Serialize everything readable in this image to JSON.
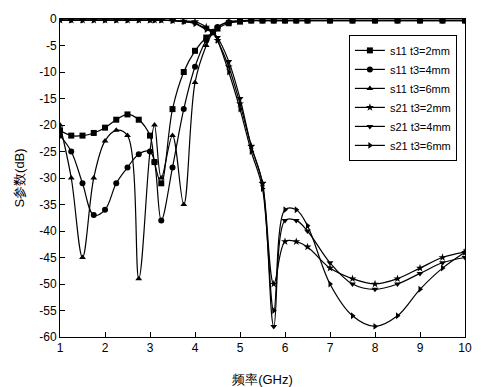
{
  "chart_data": {
    "type": "line",
    "x_label": "频率(GHz)",
    "y_label": "S参数(dB)",
    "x": [
      1,
      1.25,
      1.5,
      1.75,
      2,
      2.25,
      2.5,
      2.75,
      3,
      3.1,
      3.25,
      3.5,
      3.75,
      4,
      4.25,
      4.4,
      4.5,
      4.75,
      5,
      5.25,
      5.5,
      5.75,
      6,
      6.25,
      6.5,
      7,
      7.5,
      8,
      8.5,
      9,
      9.5,
      10
    ],
    "series": [
      {
        "name": "s11 t3=2mm",
        "color": "#000000",
        "marker": "square",
        "values": [
          -21,
          -22,
          -22,
          -21.5,
          -20.5,
          -19,
          -18,
          -19,
          -22,
          -27,
          -31,
          -17,
          -10,
          -6,
          -3.5,
          -2.5,
          -1.8,
          -0.8,
          -0.5,
          -0.3,
          -0.3,
          -0.3,
          -0.3,
          -0.3,
          -0.3,
          -0.3,
          -0.3,
          -0.3,
          -0.3,
          -0.3,
          -0.3,
          -0.3
        ]
      },
      {
        "name": "s11 t3=4mm",
        "color": "#000000",
        "marker": "circle",
        "values": [
          -22,
          -25,
          -31,
          -37,
          -36,
          -31,
          -28,
          -25.5,
          -25,
          -27,
          -38,
          -28,
          -17,
          -9,
          -4,
          -2.5,
          -1.5,
          -0.6,
          -0.4,
          -0.3,
          -0.3,
          -0.3,
          -0.3,
          -0.3,
          -0.3,
          -0.3,
          -0.3,
          -0.3,
          -0.3,
          -0.3,
          -0.3,
          -0.3
        ]
      },
      {
        "name": "s11 t3=6mm",
        "color": "#000000",
        "marker": "triangle-up",
        "values": [
          -20,
          -30,
          -45,
          -30,
          -23,
          -21,
          -22,
          -49,
          -25,
          -20,
          -30,
          -22,
          -35,
          -12,
          -5,
          -2.5,
          -1.5,
          -0.5,
          -0.3,
          -0.2,
          -0.2,
          -0.2,
          -0.2,
          -0.2,
          -0.2,
          -0.2,
          -0.2,
          -0.2,
          -0.2,
          -0.2,
          -0.2,
          -0.2
        ]
      },
      {
        "name": "s21 t3=2mm",
        "color": "#000000",
        "marker": "star",
        "values": [
          -0.2,
          -0.2,
          -0.2,
          -0.2,
          -0.2,
          -0.2,
          -0.2,
          -0.2,
          -0.2,
          -0.2,
          -0.2,
          -0.3,
          -0.4,
          -0.5,
          -1.5,
          -2.5,
          -4,
          -9,
          -16,
          -24,
          -31,
          -50,
          -42,
          -42,
          -43,
          -47,
          -49,
          -50,
          -49,
          -47,
          -45,
          -44
        ]
      },
      {
        "name": "s21 t3=4mm",
        "color": "#000000",
        "marker": "triangle-down",
        "values": [
          -0.2,
          -0.2,
          -0.2,
          -0.2,
          -0.2,
          -0.2,
          -0.2,
          -0.2,
          -0.2,
          -0.2,
          -0.2,
          -0.3,
          -0.5,
          -0.8,
          -1.8,
          -2.5,
          -3.5,
          -8,
          -15,
          -24,
          -31,
          -58,
          -38,
          -38,
          -40,
          -46,
          -50,
          -51,
          -50,
          -48,
          -46,
          -45
        ]
      },
      {
        "name": "s21 t3=6mm",
        "color": "#000000",
        "marker": "triangle-right",
        "values": [
          -0.2,
          -0.2,
          -0.2,
          -0.2,
          -0.2,
          -0.2,
          -0.2,
          -0.2,
          -0.2,
          -0.2,
          -0.2,
          -0.3,
          -0.5,
          -0.9,
          -2,
          -2.5,
          -4,
          -10,
          -17,
          -25,
          -32,
          -55,
          -36,
          -36,
          -39,
          -50,
          -56,
          -58,
          -56,
          -51,
          -47,
          -44
        ]
      }
    ],
    "xlim": [
      1,
      10
    ],
    "xticks": [
      1,
      2,
      3,
      4,
      5,
      6,
      7,
      8,
      9,
      10
    ],
    "ylim": [
      -60,
      0
    ],
    "yticks": [
      -60,
      -55,
      -50,
      -45,
      -40,
      -35,
      -30,
      -25,
      -20,
      -15,
      -10,
      -5,
      0
    ],
    "grid": false,
    "legend": "top-right"
  }
}
